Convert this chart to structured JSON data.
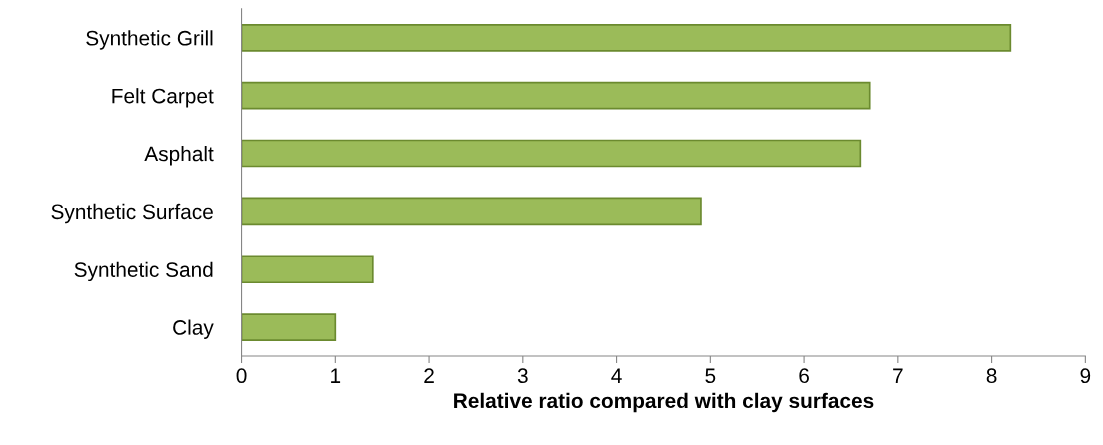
{
  "chart_data": {
    "type": "bar",
    "orientation": "horizontal",
    "xlabel": "Relative ratio compared with clay surfaces",
    "categories": [
      "Synthetic Grill",
      "Felt Carpet",
      "Asphalt",
      "Synthetic Surface",
      "Synthetic Sand",
      "Clay"
    ],
    "values": [
      8.2,
      6.7,
      6.6,
      4.9,
      1.4,
      1.0
    ],
    "color": "#9bbb59",
    "xlim": [
      0,
      9
    ],
    "xticks": [
      0,
      1,
      2,
      3,
      4,
      5,
      6,
      7,
      8,
      9
    ],
    "grid": false,
    "legend": false
  }
}
